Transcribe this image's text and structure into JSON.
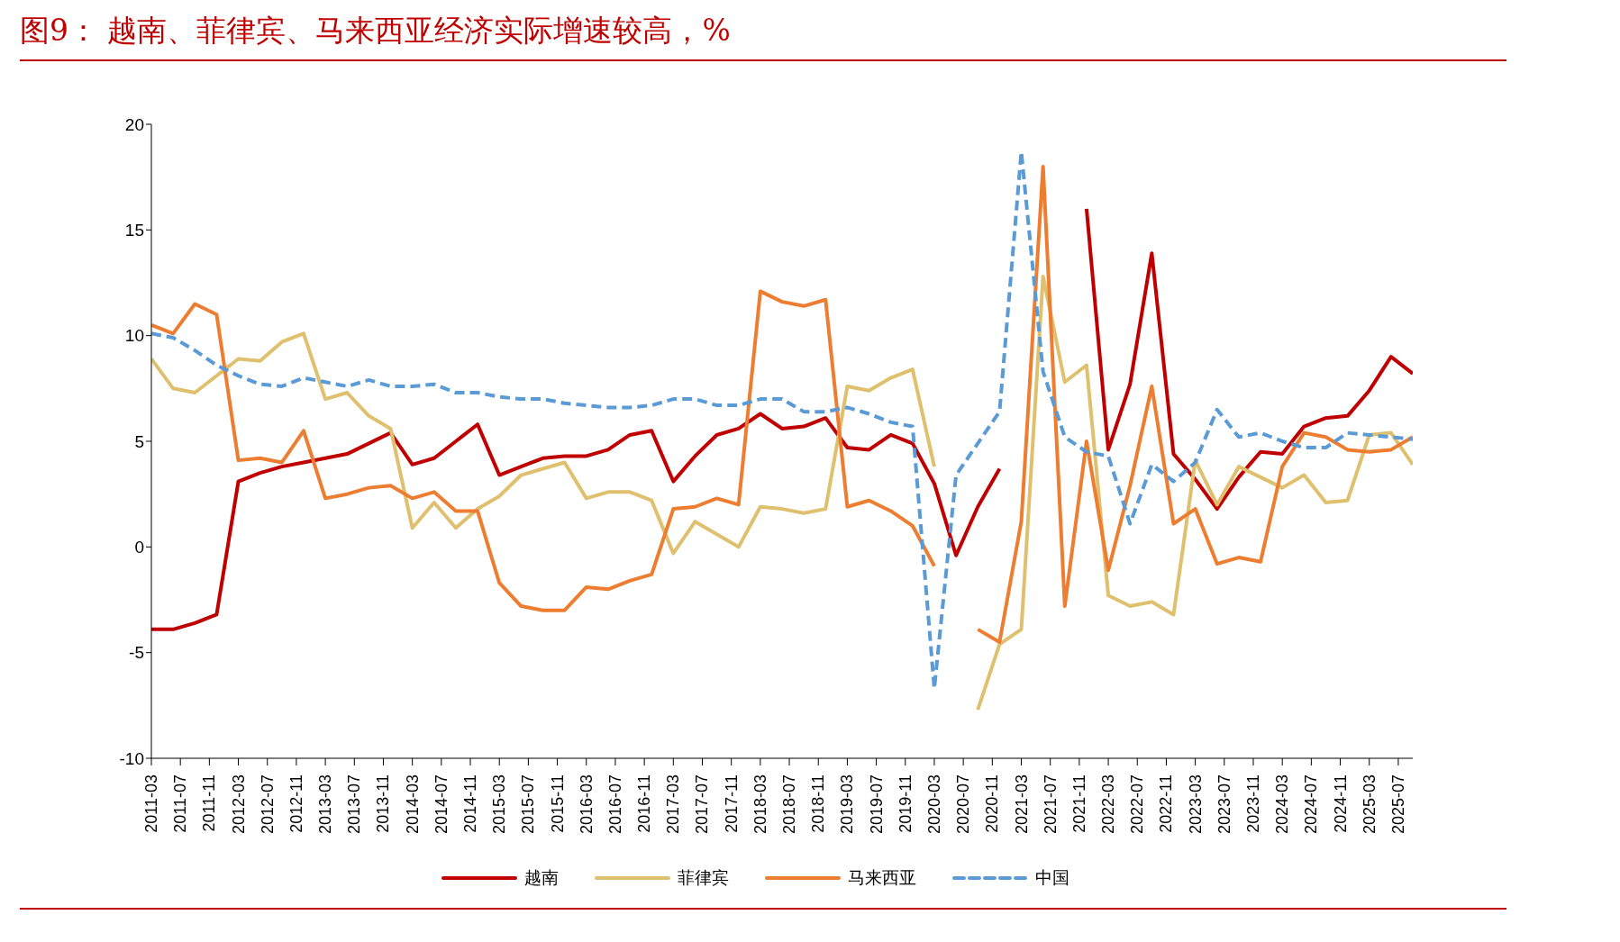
{
  "chart_data": {
    "type": "line",
    "title": "图9：  越南、菲律宾、马来西亚经济实际增速较高，%",
    "x": [
      "2011-03",
      "2011-06",
      "2011-09",
      "2011-12",
      "2012-03",
      "2012-06",
      "2012-09",
      "2012-12",
      "2013-03",
      "2013-06",
      "2013-09",
      "2013-12",
      "2014-03",
      "2014-06",
      "2014-09",
      "2014-12",
      "2015-03",
      "2015-06",
      "2015-09",
      "2015-12",
      "2016-03",
      "2016-06",
      "2016-09",
      "2016-12",
      "2017-03",
      "2017-06",
      "2017-09",
      "2017-12",
      "2018-03",
      "2018-06",
      "2018-09",
      "2018-12",
      "2019-03",
      "2019-06",
      "2019-09",
      "2019-12",
      "2020-03",
      "2020-06",
      "2020-09",
      "2020-12",
      "2021-03",
      "2021-06",
      "2021-09",
      "2021-12",
      "2022-03",
      "2022-06",
      "2022-09",
      "2022-12",
      "2023-03",
      "2023-06",
      "2023-09",
      "2023-12",
      "2024-03",
      "2024-06",
      "2024-09",
      "2024-12",
      "2025-03",
      "2025-06",
      "2025-09"
    ],
    "series": [
      {
        "name": "越南",
        "color": "#c00000",
        "line_style": "solid",
        "values": [
          -3.9,
          -3.9,
          -3.6,
          -3.2,
          3.1,
          3.5,
          3.8,
          4.0,
          4.2,
          4.4,
          4.9,
          5.4,
          3.9,
          4.2,
          5.0,
          5.8,
          3.4,
          3.8,
          4.2,
          4.3,
          4.3,
          4.6,
          5.3,
          5.5,
          3.1,
          4.3,
          5.3,
          5.6,
          6.3,
          5.6,
          5.7,
          6.1,
          4.7,
          4.6,
          5.3,
          4.9,
          3.0,
          -0.4,
          1.9,
          3.7,
          null,
          null,
          null,
          16.0,
          4.6,
          7.7,
          13.9,
          4.4,
          3.2,
          1.8,
          3.3,
          4.5,
          4.4,
          5.7,
          6.1,
          6.2,
          7.4,
          9.0,
          8.2
        ]
      },
      {
        "name": "菲律宾",
        "color": "#dfc06e",
        "line_style": "solid",
        "values": [
          8.9,
          7.5,
          7.3,
          8.1,
          8.9,
          8.8,
          9.7,
          10.1,
          7.0,
          7.3,
          6.2,
          5.6,
          0.9,
          2.1,
          0.9,
          1.8,
          2.4,
          3.4,
          3.7,
          4.0,
          2.3,
          2.6,
          2.6,
          2.2,
          -0.3,
          1.2,
          0.6,
          0.0,
          1.9,
          1.8,
          1.6,
          1.8,
          7.6,
          7.4,
          8.0,
          8.4,
          3.8,
          null,
          -7.7,
          -4.6,
          -3.9,
          12.8,
          7.8,
          8.6,
          -2.3,
          -2.8,
          -2.6,
          -3.2,
          4.1,
          2.0,
          3.8,
          3.3,
          2.8,
          3.4,
          2.1,
          2.2,
          5.3,
          5.4,
          3.9
        ]
      },
      {
        "name": "马来西亚",
        "color": "#ed7d31",
        "line_style": "solid",
        "values": [
          10.5,
          10.1,
          11.5,
          11.0,
          4.1,
          4.2,
          4.0,
          5.5,
          2.3,
          2.5,
          2.8,
          2.9,
          2.3,
          2.6,
          1.7,
          1.7,
          -1.7,
          -2.8,
          -3.0,
          -3.0,
          -1.9,
          -2.0,
          -1.6,
          -1.3,
          1.8,
          1.9,
          2.3,
          2.0,
          12.1,
          11.6,
          11.4,
          11.7,
          1.9,
          2.2,
          1.7,
          1.0,
          -0.9,
          null,
          -3.9,
          -4.5,
          1.2,
          18.0,
          -2.8,
          5.0,
          -1.1,
          2.9,
          7.6,
          1.1,
          1.8,
          -0.8,
          -0.5,
          -0.7,
          3.8,
          5.4,
          5.2,
          4.6,
          4.5,
          4.6,
          5.2
        ]
      },
      {
        "name": "中国",
        "color": "#5b9bd5",
        "line_style": "dashed",
        "values": [
          10.1,
          9.9,
          9.3,
          8.6,
          8.1,
          7.7,
          7.6,
          8.0,
          7.8,
          7.6,
          7.9,
          7.6,
          7.6,
          7.7,
          7.3,
          7.3,
          7.1,
          7.0,
          7.0,
          6.8,
          6.7,
          6.6,
          6.6,
          6.7,
          7.0,
          7.0,
          6.7,
          6.7,
          7.0,
          7.0,
          6.4,
          6.4,
          6.6,
          6.3,
          5.9,
          5.7,
          -6.7,
          3.4,
          4.9,
          6.4,
          18.7,
          8.3,
          5.2,
          4.5,
          4.3,
          1.1,
          3.9,
          3.1,
          4.0,
          6.5,
          5.2,
          5.4,
          5.0,
          4.7,
          4.7,
          5.4,
          5.3,
          5.2,
          5.1
        ]
      }
    ],
    "xlim": [
      "2011-03",
      "2025-09"
    ],
    "xticks": [
      "2011-03",
      "2011-07",
      "2011-11",
      "2012-03",
      "2012-07",
      "2012-11",
      "2013-03",
      "2013-07",
      "2013-11",
      "2014-03",
      "2014-07",
      "2014-11",
      "2015-03",
      "2015-07",
      "2015-11",
      "2016-03",
      "2016-07",
      "2016-11",
      "2017-03",
      "2017-07",
      "2017-11",
      "2018-03",
      "2018-07",
      "2018-11",
      "2019-03",
      "2019-07",
      "2019-11",
      "2020-03",
      "2020-07",
      "2020-11",
      "2021-03",
      "2021-07",
      "2021-11",
      "2022-03",
      "2022-07",
      "2022-11",
      "2023-03",
      "2023-07",
      "2023-11",
      "2024-03",
      "2024-07",
      "2024-11",
      "2025-03",
      "2025-07"
    ],
    "ylim": [
      -10,
      20
    ],
    "yticks": [
      -10,
      -5,
      0,
      5,
      10,
      15,
      20
    ],
    "legend": "bottom",
    "marker": "none"
  }
}
